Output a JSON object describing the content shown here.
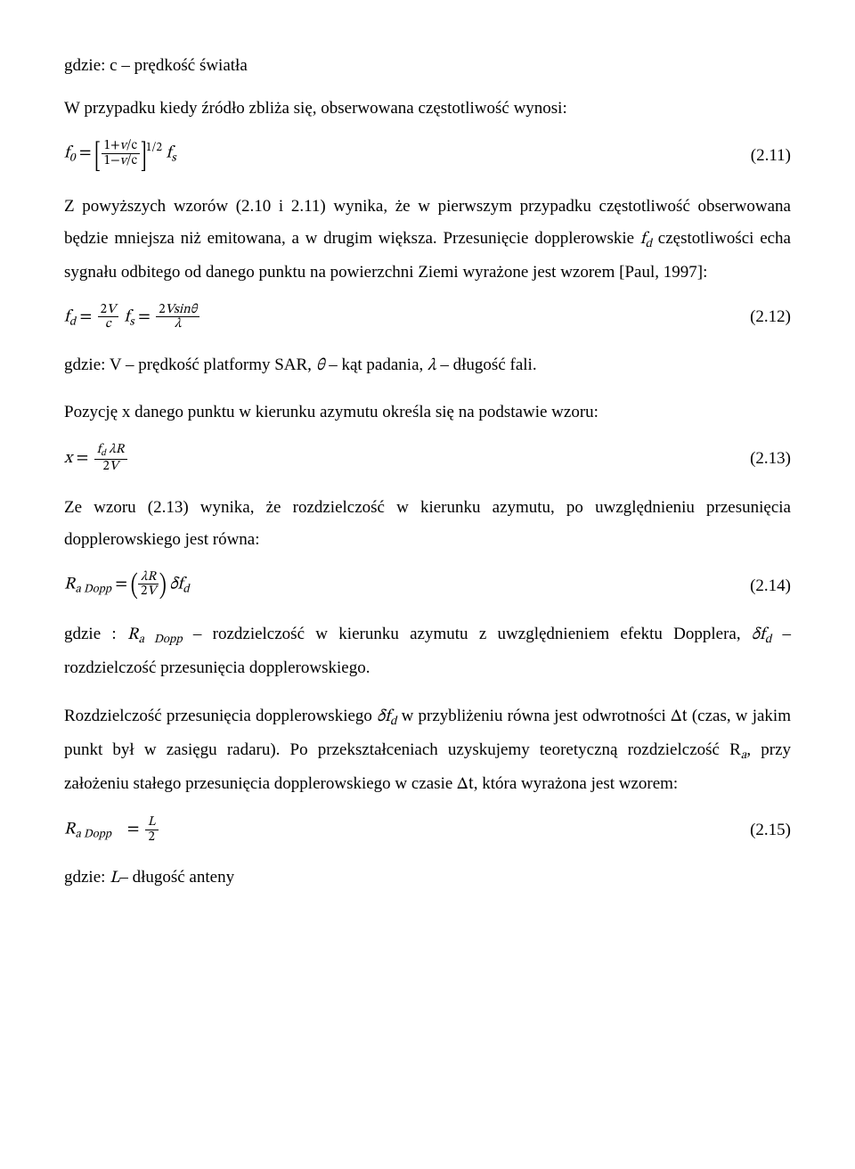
{
  "p1": "gdzie: c – prędkość światła",
  "p2": "W przypadku kiedy źródło zbliża się, obserwowana częstotliwość wynosi:",
  "eq211_num": "(2.11)",
  "eq211": {
    "lhs_symbol": "f",
    "lhs_sub": "0",
    "frac_num_a": "1+",
    "frac_num_b": "v",
    "frac_num_c": "/c",
    "frac_den_a": "1−",
    "frac_den_b": "v",
    "frac_den_c": "/c",
    "exp": "1/2",
    "tail_symbol": "f",
    "tail_sub": "s"
  },
  "p3a": "Z powyższych wzorów (2.10 i 2.11) wynika, że w pierwszym przypadku częstotliwość obserwowana będzie mniejsza niż emitowana, a w drugim większa. Przesunięcie dopplerowskie ",
  "p3_fd_sym": "f",
  "p3_fd_sub": "d",
  "p3b": " częstotliwości echa sygnału odbitego od danego punktu na powierzchni Ziemi wyrażone jest wzorem [Paul, 1997]:",
  "eq212_num": "(2.12)",
  "eq212": {
    "lhs_symbol": "f",
    "lhs_sub": "d",
    "frac1_num": "2V",
    "frac1_den": "c",
    "mid_symbol": "f",
    "mid_sub": "s",
    "frac2_num": "2Vsinθ",
    "frac2_den": "λ"
  },
  "p4a": "gdzie: V – prędkość platformy SAR, ",
  "p4_theta": "θ",
  "p4b": " – kąt padania, ",
  "p4_lambda": "λ",
  "p4c": " – długość fali.",
  "p5": "Pozycję x danego punktu w kierunku azymutu określa się na podstawie wzoru:",
  "eq213_num": "(2.13)",
  "eq213": {
    "lhs": "x",
    "num_a": "f",
    "num_a_sub": "d",
    "num_b": " λR",
    "den": "2V"
  },
  "p6": "Ze wzoru (2.13) wynika, że rozdzielczość w kierunku azymutu, po uwzględnieniu przesunięcia dopplerowskiego jest równa:",
  "eq214_num": "(2.14)",
  "eq214": {
    "lhs_sym": "R",
    "lhs_sub": "a Dopp",
    "frac_num": "λR",
    "frac_den": "2V",
    "tail": "δf",
    "tail_sub": "d"
  },
  "p7a": "gdzie : ",
  "p7_R_sym": "R",
  "p7_R_sub": "a Dopp",
  "p7b": " – rozdzielczość w kierunku azymutu z uwzględnieniem efektu Dopplera, ",
  "p7_df_sym": "δf",
  "p7_df_sub": "d",
  "p7c": " – rozdzielczość przesunięcia dopplerowskiego.",
  "p8a": "Rozdzielczość przesunięcia dopplerowskiego ",
  "p8_df_sym": "δf",
  "p8_df_sub": "d",
  "p8b": " w przybliżeniu równa jest odwrotności ",
  "p8_dt": "Δt",
  "p8c": " (czas, w jakim punkt był w zasięgu radaru). Po przekształceniach uzyskujemy teoretyczną rozdzielczość R",
  "p8_Ra_sub": "a",
  "p8d": ", przy założeniu stałego przesunięcia dopplerowskiego w czasie ",
  "p8_dt2": "Δt",
  "p8e": ", która wyrażona jest wzorem:",
  "eq215_num": "(2.15)",
  "eq215": {
    "lhs_sym": "R",
    "lhs_sub": "a Dopp",
    "frac_num": "L",
    "frac_den": "2"
  },
  "p9a": "gdzie: ",
  "p9_L": "L",
  "p9b": "– długość anteny"
}
